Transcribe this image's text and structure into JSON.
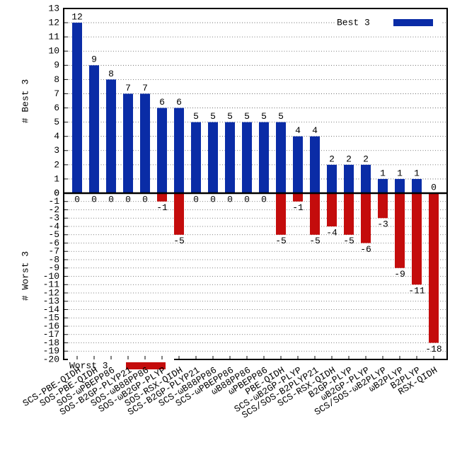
{
  "chart_data": {
    "type": "bar",
    "categories": [
      "SCS-PBE-QIDH",
      "SOS-PBE-QIDH",
      "SOS-ωPBEPP86",
      "SOS-B2GP-PLYP21",
      "SOS-ωB88PP86",
      "SOS-ωB2GP-PLYP",
      "SOS-RSX-QIDH",
      "SCS-B2GP-PLYP21",
      "SCS-ωB88PP86",
      "SCS-ωPBEPP86",
      "ωB88PP86",
      "ωPBEPP86",
      "PBE-QIDH",
      "SCS-ωB2GP-PLYP",
      "SCS/SOS-B2PLYP21",
      "SCS-RSX-QIDH",
      "B2GP-PLYP",
      "ωB2GP-PLYP",
      "SCS/SOS-ωB2PLYP",
      "ωB2PLYP",
      "B2PLYP",
      "RSX-QIDH"
    ],
    "series": [
      {
        "name": "Best 3",
        "color": "#0a2ca6",
        "legend": "upper right",
        "values": [
          12,
          9,
          8,
          7,
          7,
          6,
          6,
          5,
          5,
          5,
          5,
          5,
          5,
          4,
          4,
          2,
          2,
          2,
          1,
          1,
          1,
          0
        ]
      },
      {
        "name": "Worst 3",
        "color": "#c40c0c",
        "legend": "lower left",
        "axis": "y2",
        "values": [
          0,
          0,
          0,
          0,
          0,
          -1,
          -5,
          0,
          0,
          0,
          0,
          0,
          -5,
          -1,
          -5,
          -4,
          -5,
          -6,
          -3,
          -9,
          -11,
          -18
        ]
      }
    ],
    "y_label": "# Best 3",
    "y2_label": "# Worst 3",
    "ylim": [
      0,
      13
    ],
    "yticks": [
      0,
      1,
      2,
      3,
      4,
      5,
      6,
      7,
      8,
      9,
      10,
      11,
      12,
      13
    ],
    "y2lim": [
      -20,
      0
    ],
    "y2ticks": [
      0,
      -1,
      -2,
      -3,
      -4,
      -5,
      -6,
      -7,
      -8,
      -9,
      -10,
      -11,
      -12,
      -13,
      -14,
      -15,
      -16,
      -17,
      -18,
      -19,
      -20
    ],
    "grid": true
  }
}
